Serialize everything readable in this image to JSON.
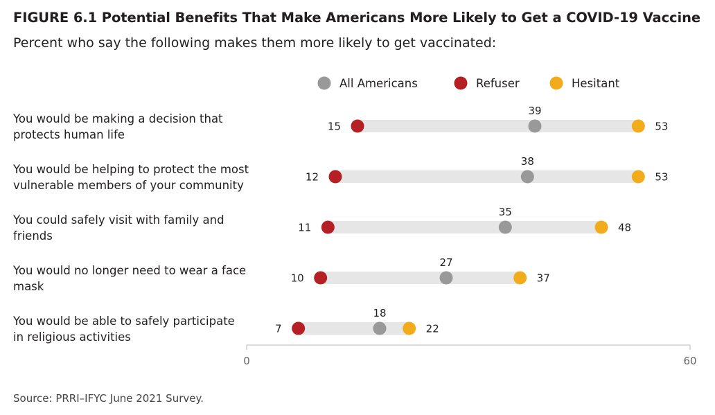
{
  "figure": {
    "title": "FIGURE 6.1  Potential Benefits That Make Americans More Likely to Get a COVID-19 Vaccine",
    "subtitle": "Percent who say the following makes them more likely to get vaccinated:",
    "source": "Source: PRRI–IFYC June 2021 Survey."
  },
  "chart_data": {
    "type": "dot",
    "title": "FIGURE 6.1  Potential Benefits That Make Americans More Likely to Get a COVID-19 Vaccine",
    "subtitle": "Percent who say the following makes them more likely to get vaccinated:",
    "categories": [
      [
        "You would be making a decision that",
        "protects human life"
      ],
      [
        "You would be helping to protect the most",
        "vulnerable members of your community"
      ],
      [
        "You could safely visit with family and",
        "friends"
      ],
      [
        "You would no longer need to wear a face",
        "mask"
      ],
      [
        "You would be able to safely participate",
        "in religious activities"
      ]
    ],
    "series": [
      {
        "name": "All Americans",
        "color": "#999999",
        "values": [
          39,
          38,
          35,
          27,
          18
        ]
      },
      {
        "name": "Refuser",
        "color": "#b52025",
        "values": [
          15,
          12,
          11,
          10,
          7
        ]
      },
      {
        "name": "Hesitant",
        "color": "#f2ac1b",
        "values": [
          53,
          53,
          48,
          37,
          22
        ]
      }
    ],
    "xlim": [
      0,
      60
    ],
    "xticks": [
      0,
      60
    ],
    "legend_position": "top",
    "grid": false
  }
}
